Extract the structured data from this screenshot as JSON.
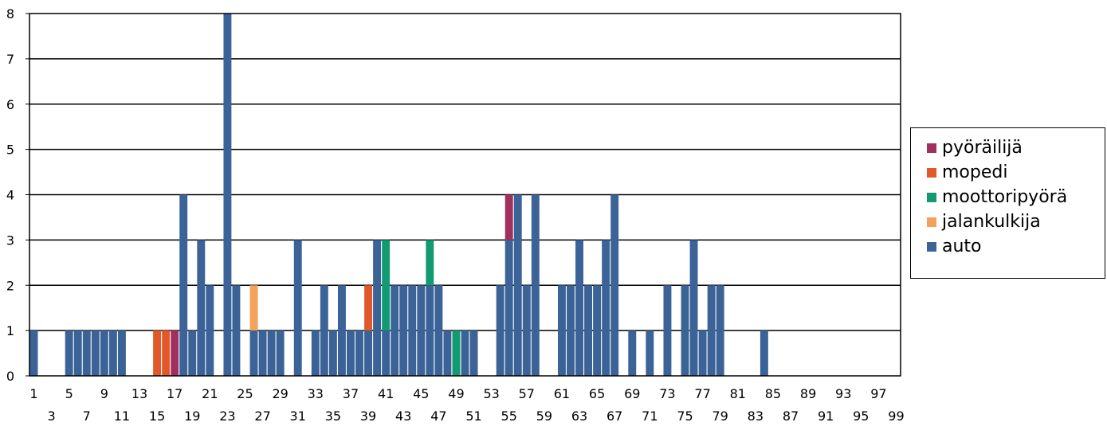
{
  "chart_data": {
    "type": "bar",
    "stacked": true,
    "x": [
      1,
      2,
      3,
      4,
      5,
      6,
      7,
      8,
      9,
      10,
      11,
      12,
      13,
      14,
      15,
      16,
      17,
      18,
      19,
      20,
      21,
      22,
      23,
      24,
      25,
      26,
      27,
      28,
      29,
      30,
      31,
      32,
      33,
      34,
      35,
      36,
      37,
      38,
      39,
      40,
      41,
      42,
      43,
      44,
      45,
      46,
      47,
      48,
      49,
      50,
      51,
      52,
      53,
      54,
      55,
      56,
      57,
      58,
      59,
      60,
      61,
      62,
      63,
      64,
      65,
      66,
      67,
      68,
      69,
      70,
      71,
      72,
      73,
      74,
      75,
      76,
      77,
      78,
      79,
      80,
      81,
      82,
      83,
      84,
      85,
      86,
      87,
      88,
      89,
      90,
      91,
      92,
      93,
      94,
      95,
      96,
      97,
      98,
      99
    ],
    "xtick_labels_top": [
      "1",
      "5",
      "9",
      "13",
      "17",
      "21",
      "25",
      "29",
      "33",
      "37",
      "41",
      "45",
      "49",
      "53",
      "57",
      "61",
      "65",
      "69",
      "73",
      "77",
      "81",
      "85",
      "89",
      "93",
      "97"
    ],
    "xtick_labels_bottom": [
      "3",
      "7",
      "11",
      "15",
      "19",
      "23",
      "27",
      "31",
      "35",
      "39",
      "43",
      "47",
      "51",
      "55",
      "59",
      "63",
      "67",
      "71",
      "75",
      "79",
      "83",
      "87",
      "91",
      "95",
      "99"
    ],
    "yticks": [
      0,
      1,
      2,
      3,
      4,
      5,
      6,
      7,
      8
    ],
    "ylim": [
      0,
      8
    ],
    "grid": true,
    "legend_position": "right",
    "series": [
      {
        "name": "auto",
        "color": "#3b6398",
        "values": [
          1,
          0,
          0,
          0,
          1,
          1,
          1,
          1,
          1,
          1,
          1,
          0,
          0,
          0,
          0,
          0,
          0,
          4,
          1,
          3,
          2,
          0,
          8,
          2,
          0,
          1,
          1,
          1,
          1,
          0,
          3,
          0,
          1,
          2,
          1,
          2,
          1,
          1,
          1,
          3,
          1,
          2,
          2,
          2,
          2,
          2,
          2,
          1,
          0,
          1,
          1,
          0,
          0,
          2,
          3,
          4,
          2,
          4,
          0,
          0,
          2,
          2,
          3,
          2,
          2,
          3,
          4,
          0,
          1,
          0,
          1,
          0,
          2,
          0,
          2,
          3,
          1,
          2,
          2,
          0,
          0,
          0,
          0,
          1,
          0,
          0,
          0,
          0,
          0,
          0,
          0,
          0,
          0,
          0,
          0,
          0,
          0,
          0,
          0
        ]
      },
      {
        "name": "jalankulkija",
        "color": "#f2a25a",
        "values": [
          0,
          0,
          0,
          0,
          0,
          0,
          0,
          0,
          0,
          0,
          0,
          0,
          0,
          0,
          0,
          0,
          0,
          0,
          0,
          0,
          0,
          0,
          0,
          0,
          0,
          1,
          0,
          0,
          0,
          0,
          0,
          0,
          0,
          0,
          0,
          0,
          0,
          0,
          0,
          0,
          0,
          0,
          0,
          0,
          0,
          0,
          0,
          0,
          0,
          0,
          0,
          0,
          0,
          0,
          0,
          0,
          0,
          0,
          0,
          0,
          0,
          0,
          0,
          0,
          0,
          0,
          0,
          0,
          0,
          0,
          0,
          0,
          0,
          0,
          0,
          0,
          0,
          0,
          0,
          0,
          0,
          0,
          0,
          0,
          0,
          0,
          0,
          0,
          0,
          0,
          0,
          0,
          0,
          0,
          0,
          0,
          0,
          0,
          0
        ]
      },
      {
        "name": "moottoripyörä",
        "color": "#129b73",
        "values": [
          0,
          0,
          0,
          0,
          0,
          0,
          0,
          0,
          0,
          0,
          0,
          0,
          0,
          0,
          0,
          0,
          0,
          0,
          0,
          0,
          0,
          0,
          0,
          0,
          0,
          0,
          0,
          0,
          0,
          0,
          0,
          0,
          0,
          0,
          0,
          0,
          0,
          0,
          0,
          0,
          2,
          0,
          0,
          0,
          0,
          1,
          0,
          0,
          1,
          0,
          0,
          0,
          0,
          0,
          0,
          0,
          0,
          0,
          0,
          0,
          0,
          0,
          0,
          0,
          0,
          0,
          0,
          0,
          0,
          0,
          0,
          0,
          0,
          0,
          0,
          0,
          0,
          0,
          0,
          0,
          0,
          0,
          0,
          0,
          0,
          0,
          0,
          0,
          0,
          0,
          0,
          0,
          0,
          0,
          0,
          0,
          0,
          0,
          0
        ]
      },
      {
        "name": "mopedi",
        "color": "#e1592b",
        "values": [
          0,
          0,
          0,
          0,
          0,
          0,
          0,
          0,
          0,
          0,
          0,
          0,
          0,
          0,
          1,
          1,
          0,
          0,
          0,
          0,
          0,
          0,
          0,
          0,
          0,
          0,
          0,
          0,
          0,
          0,
          0,
          0,
          0,
          0,
          0,
          0,
          0,
          0,
          1,
          0,
          0,
          0,
          0,
          0,
          0,
          0,
          0,
          0,
          0,
          0,
          0,
          0,
          0,
          0,
          0,
          0,
          0,
          0,
          0,
          0,
          0,
          0,
          0,
          0,
          0,
          0,
          0,
          0,
          0,
          0,
          0,
          0,
          0,
          0,
          0,
          0,
          0,
          0,
          0,
          0,
          0,
          0,
          0,
          0,
          0,
          0,
          0,
          0,
          0,
          0,
          0,
          0,
          0,
          0,
          0,
          0,
          0,
          0,
          0
        ]
      },
      {
        "name": "pyöräilijä",
        "color": "#a2305f",
        "values": [
          0,
          0,
          0,
          0,
          0,
          0,
          0,
          0,
          0,
          0,
          0,
          0,
          0,
          0,
          0,
          0,
          1,
          0,
          0,
          0,
          0,
          0,
          0,
          0,
          0,
          0,
          0,
          0,
          0,
          0,
          0,
          0,
          0,
          0,
          0,
          0,
          0,
          0,
          0,
          0,
          0,
          0,
          0,
          0,
          0,
          0,
          0,
          0,
          0,
          0,
          0,
          0,
          0,
          0,
          1,
          0,
          0,
          0,
          0,
          0,
          0,
          0,
          0,
          0,
          0,
          0,
          0,
          0,
          0,
          0,
          0,
          0,
          0,
          0,
          0,
          0,
          0,
          0,
          0,
          0,
          0,
          0,
          0,
          0,
          0,
          0,
          0,
          0,
          0,
          0,
          0,
          0,
          0,
          0,
          0,
          0,
          0,
          0,
          0
        ]
      }
    ]
  },
  "legend": {
    "items": [
      {
        "label": "pyöräilijä",
        "color": "#a2305f"
      },
      {
        "label": "mopedi",
        "color": "#e1592b"
      },
      {
        "label": "moottoripyörä",
        "color": "#129b73"
      },
      {
        "label": "jalankulkija",
        "color": "#f2a25a"
      },
      {
        "label": "auto",
        "color": "#3b6398"
      }
    ]
  }
}
